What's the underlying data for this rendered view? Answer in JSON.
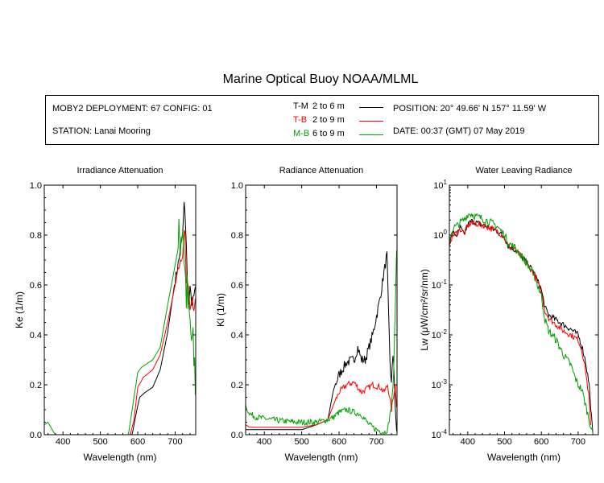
{
  "header": {
    "title": "Marine Optical Buoy NOAA/MLML",
    "deployment": "MOBY2 DEPLOYMENT: 67 CONFIG: 01",
    "station": "STATION: Lanai Mooring",
    "position": "POSITION: 20° 49.66' N   157° 11.59' W",
    "date": "DATE: 00:37 (GMT) 07 May 2019"
  },
  "legend": [
    {
      "code": "T-M",
      "text": "2 to 6  m",
      "color": "#000000"
    },
    {
      "code": "T-B",
      "text": "2 to 9  m",
      "color": "#ff0000"
    },
    {
      "code": "M-B",
      "text": "6 to 9  m",
      "color": "#00a000"
    }
  ],
  "chart_data": [
    {
      "type": "line",
      "title": "Irradiance Attenuation",
      "xlabel": "Wavelength (nm)",
      "ylabel": "Ke  (1/m)",
      "xlim": [
        350,
        755
      ],
      "ylim": [
        0,
        1
      ],
      "xticks": [
        400,
        500,
        600,
        700
      ],
      "yticks": [
        0,
        0.2,
        0.4,
        0.6,
        0.8,
        1.0
      ],
      "ytick_labels": [
        "0.0",
        "0.2",
        "0.4",
        "0.6",
        "0.8",
        "1.0"
      ],
      "series": [
        {
          "name": "T-M",
          "color": "#000000",
          "noise": 0.02,
          "noise_start": 700,
          "x": [
            350,
            585,
            595,
            605,
            620,
            640,
            660,
            680,
            700,
            710,
            720,
            725,
            730,
            735,
            740,
            745,
            750,
            755
          ],
          "y": [
            0,
            0,
            0.08,
            0.15,
            0.17,
            0.19,
            0.26,
            0.41,
            0.62,
            0.7,
            0.8,
            0.95,
            0.75,
            0.5,
            0.58,
            0.52,
            0.55,
            0.6
          ]
        },
        {
          "name": "T-B",
          "color": "#ff0000",
          "noise": 0.015,
          "noise_start": 705,
          "x": [
            350,
            580,
            590,
            600,
            615,
            640,
            660,
            680,
            700,
            710,
            720,
            725,
            730,
            735,
            740,
            745,
            750,
            755
          ],
          "y": [
            0,
            0,
            0.06,
            0.19,
            0.23,
            0.26,
            0.32,
            0.45,
            0.6,
            0.67,
            0.72,
            0.85,
            0.6,
            0.62,
            0.5,
            0.55,
            0.5,
            0.55
          ]
        },
        {
          "name": "M-B",
          "color": "#00a000",
          "noise": 0.12,
          "noise_start": 710,
          "x": [
            350,
            360,
            375,
            380,
            575,
            585,
            600,
            610,
            620,
            640,
            660,
            680,
            700,
            712,
            720,
            728,
            735,
            742,
            750,
            755
          ],
          "y": [
            0.04,
            0.05,
            0.01,
            0,
            0,
            0.1,
            0.25,
            0.27,
            0.28,
            0.3,
            0.35,
            0.52,
            0.68,
            0.78,
            0.85,
            0.6,
            0.5,
            0.4,
            0.3,
            0.2
          ]
        }
      ]
    },
    {
      "type": "line",
      "title": "Radiance Attenuation",
      "xlabel": "Wavelength (nm)",
      "ylabel": "Kl  (1/m)",
      "xlim": [
        350,
        755
      ],
      "ylim": [
        0,
        1
      ],
      "xticks": [
        400,
        500,
        600,
        700
      ],
      "yticks": [
        0,
        0.2,
        0.4,
        0.6,
        0.8,
        1.0
      ],
      "ytick_labels": [
        "0.0",
        "0.2",
        "0.4",
        "0.6",
        "0.8",
        "1.0"
      ],
      "series": [
        {
          "name": "T-M",
          "color": "#000000",
          "noise": 0.02,
          "noise_start": 590,
          "x": [
            350,
            360,
            380,
            400,
            450,
            500,
            540,
            570,
            585,
            600,
            620,
            640,
            650,
            660,
            670,
            690,
            710,
            720,
            728,
            732,
            736,
            740,
            745,
            750,
            755
          ],
          "y": [
            0.02,
            0.02,
            0.02,
            0.02,
            0.02,
            0.02,
            0.04,
            0.06,
            0.18,
            0.24,
            0.29,
            0.3,
            0.35,
            0.3,
            0.3,
            0.4,
            0.55,
            0.65,
            0.72,
            0.5,
            0.3,
            0.2,
            0.35,
            0.1,
            0.0
          ]
        },
        {
          "name": "T-B",
          "color": "#ff0000",
          "noise": 0.012,
          "noise_start": 590,
          "x": [
            350,
            360,
            380,
            500,
            540,
            570,
            585,
            600,
            620,
            640,
            650,
            660,
            670,
            690,
            710,
            720,
            730,
            740,
            750,
            755
          ],
          "y": [
            0.04,
            0.03,
            0.03,
            0.03,
            0.04,
            0.06,
            0.12,
            0.17,
            0.2,
            0.21,
            0.19,
            0.17,
            0.18,
            0.2,
            0.19,
            0.17,
            0.2,
            0.1,
            0.2,
            0.1
          ]
        },
        {
          "name": "M-B",
          "color": "#00a000",
          "noise": 0.012,
          "noise_start": 360,
          "x": [
            350,
            355,
            365,
            380,
            420,
            480,
            500,
            540,
            570,
            585,
            600,
            620,
            640,
            660,
            680,
            700,
            720,
            730,
            740,
            745,
            750,
            755
          ],
          "y": [
            0.12,
            0.09,
            0.08,
            0.07,
            0.06,
            0.05,
            0.05,
            0.05,
            0.06,
            0.07,
            0.09,
            0.1,
            0.09,
            0.08,
            0.04,
            0.02,
            0.01,
            0.02,
            0.12,
            0.2,
            0.5,
            0.8
          ]
        }
      ]
    },
    {
      "type": "line",
      "title": "Water Leaving Radiance",
      "xlabel": "Wavelength (nm)",
      "ylabel": "Lw  (μW/cm²/sr/nm)",
      "log_y": true,
      "xlim": [
        350,
        755
      ],
      "ylim": [
        0.0001,
        10
      ],
      "xticks": [
        400,
        500,
        600,
        700
      ],
      "yticks": [
        0.0001,
        0.001,
        0.01,
        0.1,
        1,
        10
      ],
      "ytick_exponents": [
        "-4",
        "-3",
        "-2",
        "-1",
        "0",
        "1"
      ],
      "series": [
        {
          "name": "T-M",
          "color": "#000000",
          "noise": 0.06,
          "noise_start": 350,
          "x": [
            350,
            360,
            370,
            380,
            390,
            400,
            410,
            420,
            450,
            480,
            500,
            510,
            530,
            550,
            580,
            600,
            610,
            620,
            640,
            660,
            680,
            700,
            710,
            720,
            730,
            735,
            740
          ],
          "y": [
            0.7,
            1.1,
            1.0,
            1.4,
            1.0,
            1.6,
            1.9,
            1.8,
            1.5,
            1.2,
            0.9,
            0.6,
            0.5,
            0.35,
            0.18,
            0.08,
            0.035,
            0.025,
            0.02,
            0.016,
            0.013,
            0.01,
            0.006,
            0.003,
            0.001,
            0.0003,
            0.0001
          ]
        },
        {
          "name": "T-B",
          "color": "#ff0000",
          "noise": 0.06,
          "noise_start": 350,
          "x": [
            350,
            360,
            370,
            380,
            390,
            400,
            410,
            420,
            450,
            480,
            500,
            510,
            530,
            550,
            580,
            600,
            610,
            620,
            640,
            660,
            680,
            700,
            710,
            720,
            730,
            735
          ],
          "y": [
            0.7,
            1.0,
            1.1,
            1.3,
            1.1,
            1.5,
            1.8,
            1.7,
            1.5,
            1.2,
            0.9,
            0.6,
            0.5,
            0.33,
            0.17,
            0.07,
            0.03,
            0.022,
            0.016,
            0.012,
            0.01,
            0.008,
            0.005,
            0.002,
            0.0005,
            0.0001
          ]
        },
        {
          "name": "M-B",
          "color": "#00a000",
          "noise": 0.08,
          "noise_start": 350,
          "x": [
            350,
            360,
            370,
            380,
            390,
            400,
            410,
            420,
            450,
            480,
            500,
            510,
            530,
            550,
            580,
            600,
            610,
            620,
            640,
            660,
            680,
            690,
            700,
            710,
            720,
            730,
            740
          ],
          "y": [
            0.8,
            1.4,
            1.5,
            1.8,
            2.0,
            2.6,
            2.7,
            2.4,
            2.0,
            1.5,
            1.0,
            0.7,
            0.55,
            0.35,
            0.16,
            0.06,
            0.02,
            0.012,
            0.008,
            0.004,
            0.0025,
            0.0015,
            0.001,
            0.0008,
            0.0004,
            0.0002,
            0.0001
          ]
        }
      ]
    }
  ]
}
